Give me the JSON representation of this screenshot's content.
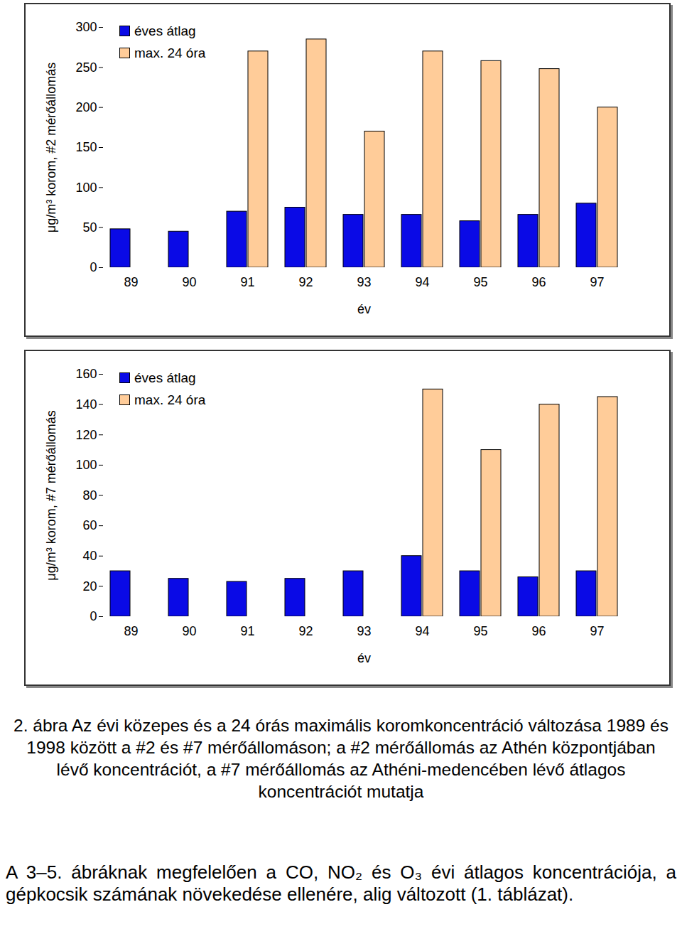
{
  "chart_data": [
    {
      "type": "bar",
      "categories": [
        "89",
        "90",
        "91",
        "92",
        "93",
        "94",
        "95",
        "96",
        "97"
      ],
      "series": [
        {
          "name": "éves átlag",
          "color": "#0a0ae6",
          "values": [
            48,
            45,
            70,
            75,
            66,
            66,
            58,
            66,
            80
          ]
        },
        {
          "name": "max. 24 óra",
          "color": "#ffcc99",
          "values": [
            null,
            null,
            270,
            285,
            170,
            270,
            258,
            248,
            200
          ]
        }
      ],
      "xlabel": "év",
      "ylabel": "μg/m³ korom, #2 mérőállomás",
      "ylim": [
        0,
        300
      ],
      "yticks": [
        0,
        50,
        100,
        150,
        200,
        250,
        300
      ],
      "grid": false,
      "legend": "upper left"
    },
    {
      "type": "bar",
      "categories": [
        "89",
        "90",
        "91",
        "92",
        "93",
        "94",
        "95",
        "96",
        "97"
      ],
      "series": [
        {
          "name": "éves átlag",
          "color": "#0a0ae6",
          "values": [
            30,
            25,
            23,
            25,
            30,
            40,
            30,
            26,
            30
          ]
        },
        {
          "name": "max. 24 óra",
          "color": "#ffcc99",
          "values": [
            null,
            null,
            null,
            null,
            null,
            150,
            110,
            140,
            145
          ]
        }
      ],
      "xlabel": "év",
      "ylabel": "μg/m³ korom, #7 mérőállomás",
      "ylim": [
        0,
        160
      ],
      "yticks": [
        0,
        20,
        40,
        60,
        80,
        100,
        120,
        140,
        160
      ],
      "grid": false,
      "legend": "upper left"
    }
  ],
  "caption": "2. ábra Az évi közepes és a 24 órás maximális koromkoncentráció változása 1989 és 1998 között a #2 és #7 mérőállomáson; a #2 mérőállomás az Athén központjában lévő koncentrációt, a #7 mérőállomás az Athéni-medencében lévő átlagos koncentrációt mutatja",
  "paragraph": "A 3–5. ábráknak megfelelően a CO, NO₂ és O₃ évi átlagos koncentrációja, a gépkocsik számának növekedése ellenére, alig változott (1. táblázat)."
}
